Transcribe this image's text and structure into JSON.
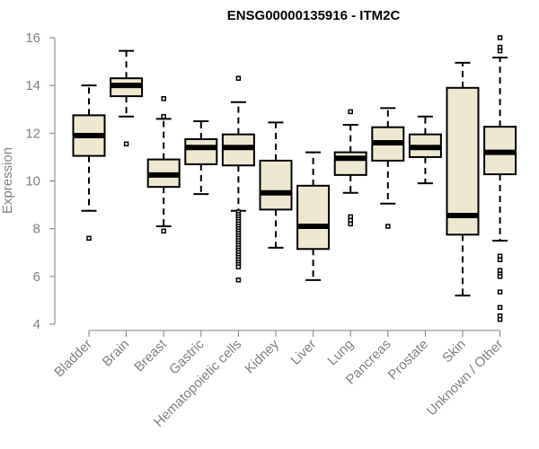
{
  "chart_data": {
    "type": "boxplot",
    "title": "ENSG00000135916 - ITM2C",
    "xlabel": "",
    "ylabel": "Expression",
    "ylim": [
      4,
      16
    ],
    "yticks": [
      4,
      6,
      8,
      10,
      12,
      14,
      16
    ],
    "grid": false,
    "legend": "none",
    "colors": {
      "box_fill": "#EEE8D1",
      "box_stroke": "#000000",
      "axis": "#808080",
      "text": "#808080"
    },
    "categories": [
      "Bladder",
      "Brain",
      "Breast",
      "Gastric",
      "Hematopoietic cells",
      "Kidney",
      "Liver",
      "Lung",
      "Pancreas",
      "Prostate",
      "Skin",
      "Unknown / Other"
    ],
    "boxes": [
      {
        "label": "Bladder",
        "whisker_low": 8.75,
        "q1": 11.05,
        "median": 11.9,
        "q3": 12.75,
        "whisker_high": 14.0,
        "outliers": [
          7.6
        ]
      },
      {
        "label": "Brain",
        "whisker_low": 12.7,
        "q1": 13.55,
        "median": 14.0,
        "q3": 14.3,
        "whisker_high": 15.45,
        "outliers": [
          11.55
        ]
      },
      {
        "label": "Breast",
        "whisker_low": 8.1,
        "q1": 9.75,
        "median": 10.25,
        "q3": 10.9,
        "whisker_high": 12.6,
        "outliers": [
          13.45,
          12.7,
          7.9
        ]
      },
      {
        "label": "Gastric",
        "whisker_low": 9.45,
        "q1": 10.7,
        "median": 11.4,
        "q3": 11.75,
        "whisker_high": 12.5,
        "outliers": []
      },
      {
        "label": "Hematopoietic cells",
        "whisker_low": 8.75,
        "q1": 10.65,
        "median": 11.4,
        "q3": 11.95,
        "whisker_high": 13.3,
        "outliers": [
          14.3,
          8.7,
          8.6,
          8.5,
          8.4,
          8.3,
          8.2,
          8.1,
          8.0,
          7.9,
          7.8,
          7.7,
          7.6,
          7.5,
          7.4,
          7.3,
          7.2,
          7.1,
          7.0,
          6.9,
          6.8,
          6.7,
          6.6,
          6.5,
          6.4,
          5.85
        ]
      },
      {
        "label": "Kidney",
        "whisker_low": 7.2,
        "q1": 8.8,
        "median": 9.5,
        "q3": 10.85,
        "whisker_high": 12.45,
        "outliers": []
      },
      {
        "label": "Liver",
        "whisker_low": 5.85,
        "q1": 7.15,
        "median": 8.1,
        "q3": 9.8,
        "whisker_high": 11.2,
        "outliers": []
      },
      {
        "label": "Lung",
        "whisker_low": 9.5,
        "q1": 10.25,
        "median": 10.95,
        "q3": 11.2,
        "whisker_high": 12.35,
        "outliers": [
          12.9,
          8.5,
          8.35,
          8.2
        ]
      },
      {
        "label": "Pancreas",
        "whisker_low": 9.05,
        "q1": 10.85,
        "median": 11.6,
        "q3": 12.25,
        "whisker_high": 13.05,
        "outliers": [
          8.1
        ]
      },
      {
        "label": "Prostate",
        "whisker_low": 9.9,
        "q1": 11.0,
        "median": 11.4,
        "q3": 11.95,
        "whisker_high": 12.7,
        "outliers": []
      },
      {
        "label": "Skin",
        "whisker_low": 5.2,
        "q1": 7.75,
        "median": 8.55,
        "q3": 13.9,
        "whisker_high": 14.95,
        "outliers": []
      },
      {
        "label": "Unknown / Other",
        "whisker_low": 7.5,
        "q1": 10.28,
        "median": 11.2,
        "q3": 12.27,
        "whisker_high": 15.17,
        "outliers": [
          16.0,
          15.6,
          15.45,
          6.85,
          6.7,
          6.25,
          6.1,
          6.0,
          5.35,
          4.7,
          4.35,
          4.2
        ]
      }
    ]
  }
}
